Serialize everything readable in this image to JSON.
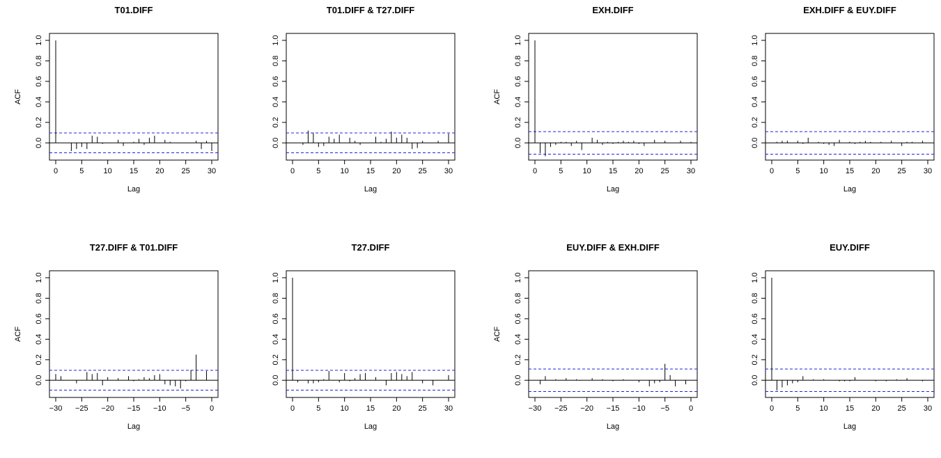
{
  "chart_data": [
    {
      "type": "bar",
      "title": "T01.DIFF",
      "xlabel": "Lag",
      "ylabel": "ACF",
      "xlim": [
        0,
        30
      ],
      "ylim": [
        -0.1,
        1.0
      ],
      "xticks": [
        "0",
        "5",
        "10",
        "15",
        "20",
        "25",
        "30"
      ],
      "yticks": [
        "0.0",
        "0.2",
        "0.4",
        "0.6",
        "0.8",
        "1.0"
      ],
      "confidence_band": 0.097,
      "lags": [
        0,
        1,
        2,
        3,
        4,
        5,
        6,
        7,
        8,
        9,
        10,
        11,
        12,
        13,
        14,
        15,
        16,
        17,
        18,
        19,
        20,
        21,
        22,
        23,
        24,
        25,
        26,
        27,
        28,
        29,
        30
      ],
      "values": [
        1.0,
        0.0,
        0.0,
        -0.08,
        -0.06,
        -0.04,
        -0.06,
        0.07,
        0.06,
        -0.01,
        0.0,
        0.0,
        0.03,
        -0.03,
        0.0,
        0.01,
        0.04,
        -0.02,
        0.05,
        0.07,
        0.0,
        0.03,
        0.01,
        0.0,
        0.0,
        0.0,
        0.0,
        0.02,
        -0.06,
        0.02,
        -0.08
      ]
    },
    {
      "type": "bar",
      "title": "T01.DIFF & T27.DIFF",
      "xlabel": "Lag",
      "ylabel": "",
      "xlim": [
        0,
        30
      ],
      "ylim": [
        -0.1,
        1.0
      ],
      "xticks": [
        "0",
        "5",
        "10",
        "15",
        "20",
        "25",
        "30"
      ],
      "yticks": [
        "0.0",
        "0.2",
        "0.4",
        "0.6",
        "0.8",
        "1.0"
      ],
      "confidence_band": 0.097,
      "lags": [
        0,
        1,
        2,
        3,
        4,
        5,
        6,
        7,
        8,
        9,
        10,
        11,
        12,
        13,
        14,
        15,
        16,
        17,
        18,
        19,
        20,
        21,
        22,
        23,
        24,
        25,
        26,
        27,
        28,
        29,
        30
      ],
      "values": [
        0.0,
        0.0,
        -0.02,
        0.12,
        0.1,
        -0.04,
        -0.03,
        0.06,
        0.04,
        0.08,
        0.0,
        0.05,
        0.02,
        -0.02,
        0.0,
        0.0,
        0.06,
        0.01,
        0.04,
        0.11,
        0.05,
        0.08,
        0.05,
        -0.06,
        -0.05,
        0.02,
        0.0,
        0.0,
        0.02,
        0.0,
        0.09
      ]
    },
    {
      "type": "bar",
      "title": "EXH.DIFF",
      "xlabel": "Lag",
      "ylabel": "ACF",
      "xlim": [
        0,
        30
      ],
      "ylim": [
        -0.1,
        1.0
      ],
      "xticks": [
        "0",
        "5",
        "10",
        "15",
        "20",
        "25",
        "30"
      ],
      "yticks": [
        "0.0",
        "0.2",
        "0.4",
        "0.6",
        "0.8",
        "1.0"
      ],
      "confidence_band": 0.11,
      "lags": [
        0,
        1,
        2,
        3,
        4,
        5,
        6,
        7,
        8,
        9,
        10,
        11,
        12,
        13,
        14,
        15,
        16,
        17,
        18,
        19,
        20,
        21,
        22,
        23,
        24,
        25,
        26,
        27,
        28,
        29,
        30
      ],
      "values": [
        1.0,
        -0.1,
        -0.13,
        -0.04,
        -0.02,
        0.01,
        0.01,
        -0.03,
        0.02,
        -0.07,
        0.0,
        0.05,
        0.03,
        -0.02,
        0.01,
        -0.01,
        0.01,
        0.02,
        0.01,
        0.02,
        -0.01,
        -0.03,
        0.0,
        0.03,
        0.0,
        0.02,
        0.0,
        0.0,
        0.02,
        0.0,
        0.01
      ]
    },
    {
      "type": "bar",
      "title": "EXH.DIFF & EUY.DIFF",
      "xlabel": "Lag",
      "ylabel": "",
      "xlim": [
        0,
        30
      ],
      "ylim": [
        -0.1,
        1.0
      ],
      "xticks": [
        "0",
        "5",
        "10",
        "15",
        "20",
        "25",
        "30"
      ],
      "yticks": [
        "0.0",
        "0.2",
        "0.4",
        "0.6",
        "0.8",
        "1.0"
      ],
      "confidence_band": 0.11,
      "lags": [
        0,
        1,
        2,
        3,
        4,
        5,
        6,
        7,
        8,
        9,
        10,
        11,
        12,
        13,
        14,
        15,
        16,
        17,
        18,
        19,
        20,
        21,
        22,
        23,
        24,
        25,
        26,
        27,
        28,
        29,
        30
      ],
      "values": [
        0.0,
        0.01,
        0.02,
        0.02,
        0.0,
        0.02,
        -0.01,
        0.05,
        0.0,
        0.01,
        -0.01,
        -0.02,
        -0.03,
        0.03,
        0.0,
        0.01,
        -0.01,
        0.01,
        0.02,
        0.01,
        0.0,
        0.01,
        0.0,
        0.02,
        0.0,
        -0.03,
        0.01,
        0.01,
        0.0,
        0.02,
        0.0
      ]
    },
    {
      "type": "bar",
      "title": "T27.DIFF & T01.DIFF",
      "xlabel": "Lag",
      "ylabel": "ACF",
      "xlim": [
        -30,
        0
      ],
      "ylim": [
        -0.1,
        1.0
      ],
      "xticks": [
        "−30",
        "−25",
        "−20",
        "−15",
        "−10",
        "−5",
        "0"
      ],
      "yticks": [
        "0.0",
        "0.2",
        "0.4",
        "0.6",
        "0.8",
        "1.0"
      ],
      "confidence_band": 0.097,
      "lags": [
        -30,
        -29,
        -28,
        -27,
        -26,
        -25,
        -24,
        -23,
        -22,
        -21,
        -20,
        -19,
        -18,
        -17,
        -16,
        -15,
        -14,
        -13,
        -12,
        -11,
        -10,
        -9,
        -8,
        -7,
        -6,
        -5,
        -4,
        -3,
        -2,
        -1,
        0
      ],
      "values": [
        0.06,
        0.04,
        0.0,
        0.0,
        -0.03,
        0.0,
        0.08,
        0.06,
        0.07,
        -0.05,
        0.03,
        0.0,
        0.02,
        0.0,
        0.04,
        -0.01,
        0.01,
        0.03,
        0.02,
        0.05,
        0.06,
        -0.04,
        -0.05,
        -0.06,
        -0.08,
        -0.01,
        0.1,
        0.25,
        0.0,
        0.09,
        0.0
      ]
    },
    {
      "type": "bar",
      "title": "T27.DIFF",
      "xlabel": "Lag",
      "ylabel": "",
      "xlim": [
        0,
        30
      ],
      "ylim": [
        -0.1,
        1.0
      ],
      "xticks": [
        "0",
        "5",
        "10",
        "15",
        "20",
        "25",
        "30"
      ],
      "yticks": [
        "0.0",
        "0.2",
        "0.4",
        "0.6",
        "0.8",
        "1.0"
      ],
      "confidence_band": 0.097,
      "lags": [
        0,
        1,
        2,
        3,
        4,
        5,
        6,
        7,
        8,
        9,
        10,
        11,
        12,
        13,
        14,
        15,
        16,
        17,
        18,
        19,
        20,
        21,
        22,
        23,
        24,
        25,
        26,
        27,
        28,
        29,
        30
      ],
      "values": [
        1.0,
        -0.02,
        0.0,
        -0.03,
        -0.03,
        -0.02,
        0.01,
        0.09,
        0.0,
        -0.02,
        0.07,
        -0.01,
        0.02,
        0.06,
        0.07,
        0.0,
        0.03,
        0.0,
        -0.05,
        0.07,
        0.08,
        0.06,
        0.04,
        0.08,
        0.0,
        -0.03,
        0.0,
        -0.05,
        0.0,
        0.0,
        0.05
      ]
    },
    {
      "type": "bar",
      "title": "EUY.DIFF & EXH.DIFF",
      "xlabel": "Lag",
      "ylabel": "ACF",
      "xlim": [
        -30,
        0
      ],
      "ylim": [
        -0.1,
        1.0
      ],
      "xticks": [
        "−30",
        "−25",
        "−20",
        "−15",
        "−10",
        "−5",
        "0"
      ],
      "yticks": [
        "0.0",
        "0.2",
        "0.4",
        "0.6",
        "0.8",
        "1.0"
      ],
      "confidence_band": 0.11,
      "lags": [
        -30,
        -29,
        -28,
        -27,
        -26,
        -25,
        -24,
        -23,
        -22,
        -21,
        -20,
        -19,
        -18,
        -17,
        -16,
        -15,
        -14,
        -13,
        -12,
        -11,
        -10,
        -9,
        -8,
        -7,
        -6,
        -5,
        -4,
        -3,
        -2,
        -1,
        0
      ],
      "values": [
        0.0,
        -0.04,
        0.04,
        0.0,
        0.01,
        0.0,
        0.02,
        0.0,
        0.01,
        0.0,
        0.0,
        0.02,
        0.0,
        0.01,
        0.0,
        -0.01,
        0.0,
        0.01,
        0.0,
        0.0,
        -0.02,
        0.0,
        -0.06,
        -0.03,
        -0.02,
        0.16,
        0.05,
        -0.06,
        0.0,
        -0.04,
        0.0
      ]
    },
    {
      "type": "bar",
      "title": "EUY.DIFF",
      "xlabel": "Lag",
      "ylabel": "",
      "xlim": [
        0,
        30
      ],
      "ylim": [
        -0.1,
        1.0
      ],
      "xticks": [
        "0",
        "5",
        "10",
        "15",
        "20",
        "25",
        "30"
      ],
      "yticks": [
        "0.0",
        "0.2",
        "0.4",
        "0.6",
        "0.8",
        "1.0"
      ],
      "confidence_band": 0.11,
      "lags": [
        0,
        1,
        2,
        3,
        4,
        5,
        6,
        7,
        8,
        9,
        10,
        11,
        12,
        13,
        14,
        15,
        16,
        17,
        18,
        19,
        20,
        21,
        22,
        23,
        24,
        25,
        26,
        27,
        28,
        29,
        30
      ],
      "values": [
        1.0,
        -0.1,
        -0.07,
        -0.05,
        -0.03,
        -0.02,
        0.04,
        0.0,
        0.01,
        0.0,
        0.01,
        0.0,
        0.0,
        -0.01,
        -0.01,
        -0.01,
        0.03,
        0.0,
        0.0,
        0.0,
        -0.01,
        0.0,
        -0.01,
        0.0,
        0.01,
        0.0,
        0.02,
        0.0,
        0.0,
        -0.01,
        0.0
      ]
    }
  ],
  "style": {
    "band_color": "#2020e0",
    "axis_color": "#000000",
    "zero_line_color": "#000000"
  }
}
